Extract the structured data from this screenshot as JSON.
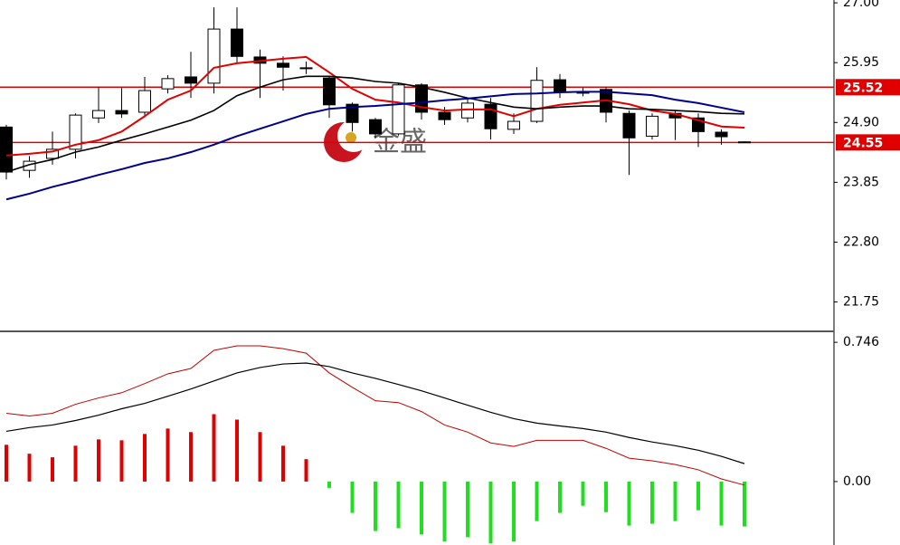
{
  "watermark": "金盛",
  "chart_data": [
    {
      "type": "candlestick",
      "open": [
        24.82,
        24.06,
        24.27,
        24.43,
        24.98,
        25.11,
        25.08,
        25.49,
        25.7,
        25.59,
        26.54,
        26.05,
        25.94,
        25.86,
        25.68,
        25.22,
        24.95,
        24.7,
        25.56,
        25.08,
        24.98,
        25.22,
        24.78,
        24.92,
        25.65,
        25.43,
        25.48,
        25.06,
        24.66,
        25.06,
        24.98,
        24.73,
        24.56
      ],
      "high": [
        24.86,
        24.31,
        24.74,
        25.06,
        25.52,
        25.51,
        25.7,
        25.73,
        26.14,
        26.92,
        26.92,
        26.18,
        26.06,
        25.97,
        25.71,
        25.25,
        24.98,
        25.59,
        25.59,
        25.17,
        25.33,
        25.33,
        25.06,
        25.87,
        25.75,
        25.51,
        25.52,
        25.11,
        25.06,
        25.11,
        25.06,
        24.78,
        24.57
      ],
      "low": [
        23.9,
        23.93,
        24.16,
        24.27,
        24.89,
        24.98,
        25.01,
        25.41,
        25.33,
        25.41,
        25.94,
        25.33,
        25.46,
        25.75,
        24.98,
        24.74,
        24.62,
        24.67,
        24.95,
        24.86,
        24.9,
        24.6,
        24.7,
        24.89,
        25.33,
        25.36,
        24.9,
        23.98,
        24.6,
        24.59,
        24.47,
        24.51,
        24.54
      ],
      "close": [
        24.03,
        24.22,
        24.43,
        25.03,
        25.11,
        25.05,
        25.46,
        25.67,
        25.59,
        26.54,
        26.06,
        25.94,
        25.87,
        25.86,
        25.21,
        24.9,
        24.7,
        25.56,
        25.08,
        24.95,
        25.24,
        24.79,
        24.92,
        25.64,
        25.43,
        25.43,
        25.08,
        24.63,
        25.01,
        24.98,
        24.74,
        24.65,
        24.55
      ],
      "up_color": "#ffffff",
      "down_color": "#000000",
      "outline": "#000000",
      "series": [
        {
          "color": "#e00000",
          "width": 2,
          "values": [
            24.32,
            24.35,
            24.39,
            24.51,
            24.59,
            24.74,
            25.01,
            25.3,
            25.46,
            25.86,
            25.94,
            25.98,
            26.02,
            26.05,
            25.78,
            25.49,
            25.3,
            25.25,
            25.17,
            25.11,
            25.13,
            25.13,
            25.01,
            25.14,
            25.21,
            25.25,
            25.29,
            25.22,
            25.11,
            25.05,
            24.94,
            24.83,
            24.81
          ]
        },
        {
          "color": "#000000",
          "width": 1.6,
          "values": [
            24.03,
            24.16,
            24.25,
            24.38,
            24.47,
            24.59,
            24.7,
            24.82,
            24.94,
            25.11,
            25.37,
            25.52,
            25.65,
            25.71,
            25.71,
            25.68,
            25.62,
            25.59,
            25.52,
            25.43,
            25.33,
            25.25,
            25.17,
            25.14,
            25.17,
            25.19,
            25.19,
            25.14,
            25.13,
            25.11,
            25.09,
            25.06,
            25.05
          ]
        },
        {
          "color": "#00008b",
          "width": 2,
          "values": [
            23.55,
            23.65,
            23.77,
            23.87,
            23.98,
            24.08,
            24.19,
            24.27,
            24.38,
            24.51,
            24.66,
            24.79,
            24.92,
            25.05,
            25.14,
            25.17,
            25.19,
            25.22,
            25.25,
            25.29,
            25.32,
            25.36,
            25.4,
            25.41,
            25.43,
            25.44,
            25.44,
            25.41,
            25.38,
            25.3,
            25.24,
            25.16,
            25.08
          ]
        }
      ],
      "hlines": [
        {
          "value": 25.52,
          "color": "#e00000"
        },
        {
          "value": 24.55,
          "color": "#e00000"
        }
      ],
      "ylim": [
        21.25,
        27.05
      ],
      "yticks": [
        {
          "value": 27,
          "label": "27.00"
        },
        25.95,
        {
          "value": 24.9,
          "label": "24.90"
        },
        23.85,
        {
          "value": 22.8,
          "label": "22.80"
        },
        21.75
      ]
    },
    {
      "type": "macd",
      "values": [
        0.197,
        0.149,
        0.13,
        0.192,
        0.226,
        0.221,
        0.255,
        0.284,
        0.265,
        0.361,
        0.332,
        0.265,
        0.192,
        0.12,
        -0.034,
        -0.168,
        -0.265,
        -0.25,
        -0.284,
        -0.322,
        -0.298,
        -0.332,
        -0.322,
        -0.212,
        -0.168,
        -0.13,
        -0.164,
        -0.236,
        -0.226,
        -0.212,
        -0.154,
        -0.236,
        -0.241
      ],
      "positive_color": "#e00000",
      "negative_color": "#22dd22",
      "series": [
        {
          "color": "#c00000",
          "width": 1,
          "values": [
            0.366,
            0.351,
            0.366,
            0.414,
            0.448,
            0.476,
            0.525,
            0.577,
            0.606,
            0.703,
            0.727,
            0.727,
            0.712,
            0.688,
            0.582,
            0.505,
            0.433,
            0.423,
            0.375,
            0.303,
            0.265,
            0.207,
            0.188,
            0.221,
            0.221,
            0.221,
            0.178,
            0.125,
            0.111,
            0.091,
            0.063,
            0.014,
            -0.019
          ]
        },
        {
          "color": "#000000",
          "width": 1.2,
          "values": [
            0.269,
            0.289,
            0.303,
            0.327,
            0.356,
            0.39,
            0.419,
            0.457,
            0.496,
            0.539,
            0.582,
            0.611,
            0.63,
            0.635,
            0.616,
            0.582,
            0.553,
            0.52,
            0.486,
            0.448,
            0.409,
            0.371,
            0.337,
            0.313,
            0.298,
            0.284,
            0.265,
            0.236,
            0.212,
            0.192,
            0.168,
            0.135,
            0.096
          ]
        }
      ],
      "ylim": [
        -0.34,
        0.8
      ],
      "yticks": [
        0.746,
        {
          "value": 0,
          "label": "0.00"
        }
      ]
    }
  ]
}
